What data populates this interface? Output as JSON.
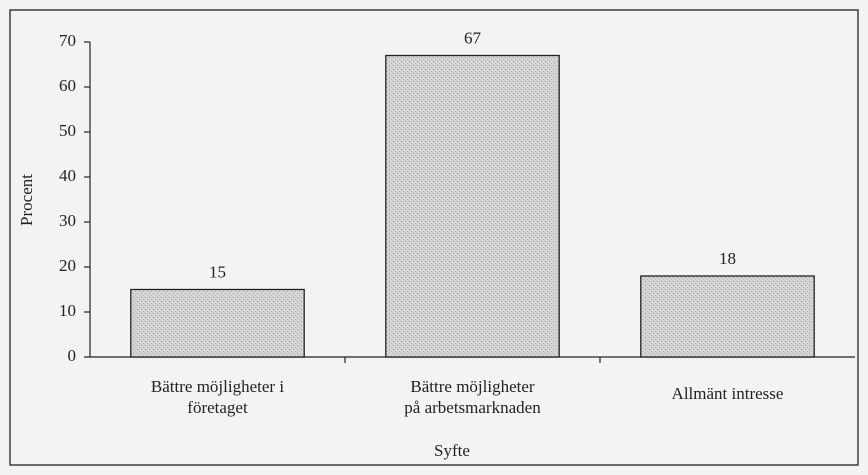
{
  "chart_data": {
    "type": "bar",
    "categories": [
      "Bättre möjligheter i\nföretaget",
      "Bättre möjligheter\npå arbetsmarknaden",
      "Allmänt intresse"
    ],
    "values": [
      15,
      67,
      18
    ],
    "color": "#d2d2d2",
    "xlabel": "Syfte",
    "ylabel": "Procent",
    "ylim": [
      0,
      70
    ],
    "yticks": [
      0,
      10,
      20,
      30,
      40,
      50,
      60,
      70
    ],
    "grid": false
  }
}
